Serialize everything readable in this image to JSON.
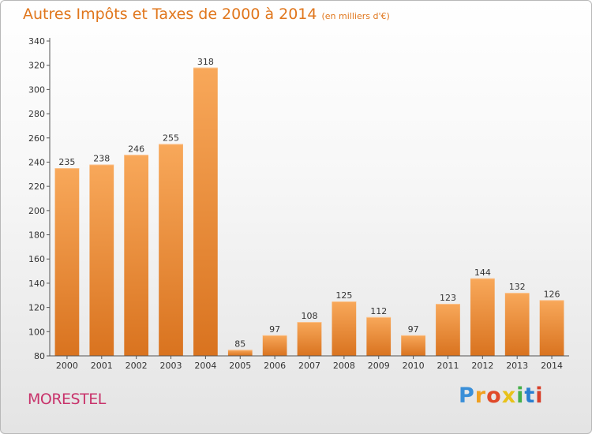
{
  "title": "Autres Impôts et Taxes de 2000 à 2014",
  "subtitle": "(en milliers d'€)",
  "commune": "MORESTEL",
  "logo": {
    "letters": [
      "P",
      "r",
      "o",
      "x",
      "i",
      "t",
      "i"
    ],
    "colors": [
      "#3a8fd8",
      "#f0a020",
      "#e04a2a",
      "#e8c21a",
      "#46b04a",
      "#2a7fd0",
      "#d8402a"
    ]
  },
  "colors": {
    "title": "#e0761c",
    "bar_top": "#f8a85a",
    "bar_bottom": "#d9731f",
    "commune": "#c8336b"
  },
  "chart_data": {
    "type": "bar",
    "title": "Autres Impôts et Taxes de 2000 à 2014",
    "subtitle": "(en milliers d'€)",
    "xlabel": "",
    "ylabel": "",
    "categories": [
      "2000",
      "2001",
      "2002",
      "2003",
      "2004",
      "2005",
      "2006",
      "2007",
      "2008",
      "2009",
      "2010",
      "2011",
      "2012",
      "2013",
      "2014"
    ],
    "values": [
      235,
      238,
      246,
      255,
      318,
      85,
      97,
      108,
      125,
      112,
      97,
      123,
      144,
      132,
      126
    ],
    "ylim": [
      80,
      340
    ],
    "yticks": [
      80,
      100,
      120,
      140,
      160,
      180,
      200,
      220,
      240,
      260,
      280,
      300,
      320,
      340
    ],
    "grid": false,
    "legend": "none"
  }
}
